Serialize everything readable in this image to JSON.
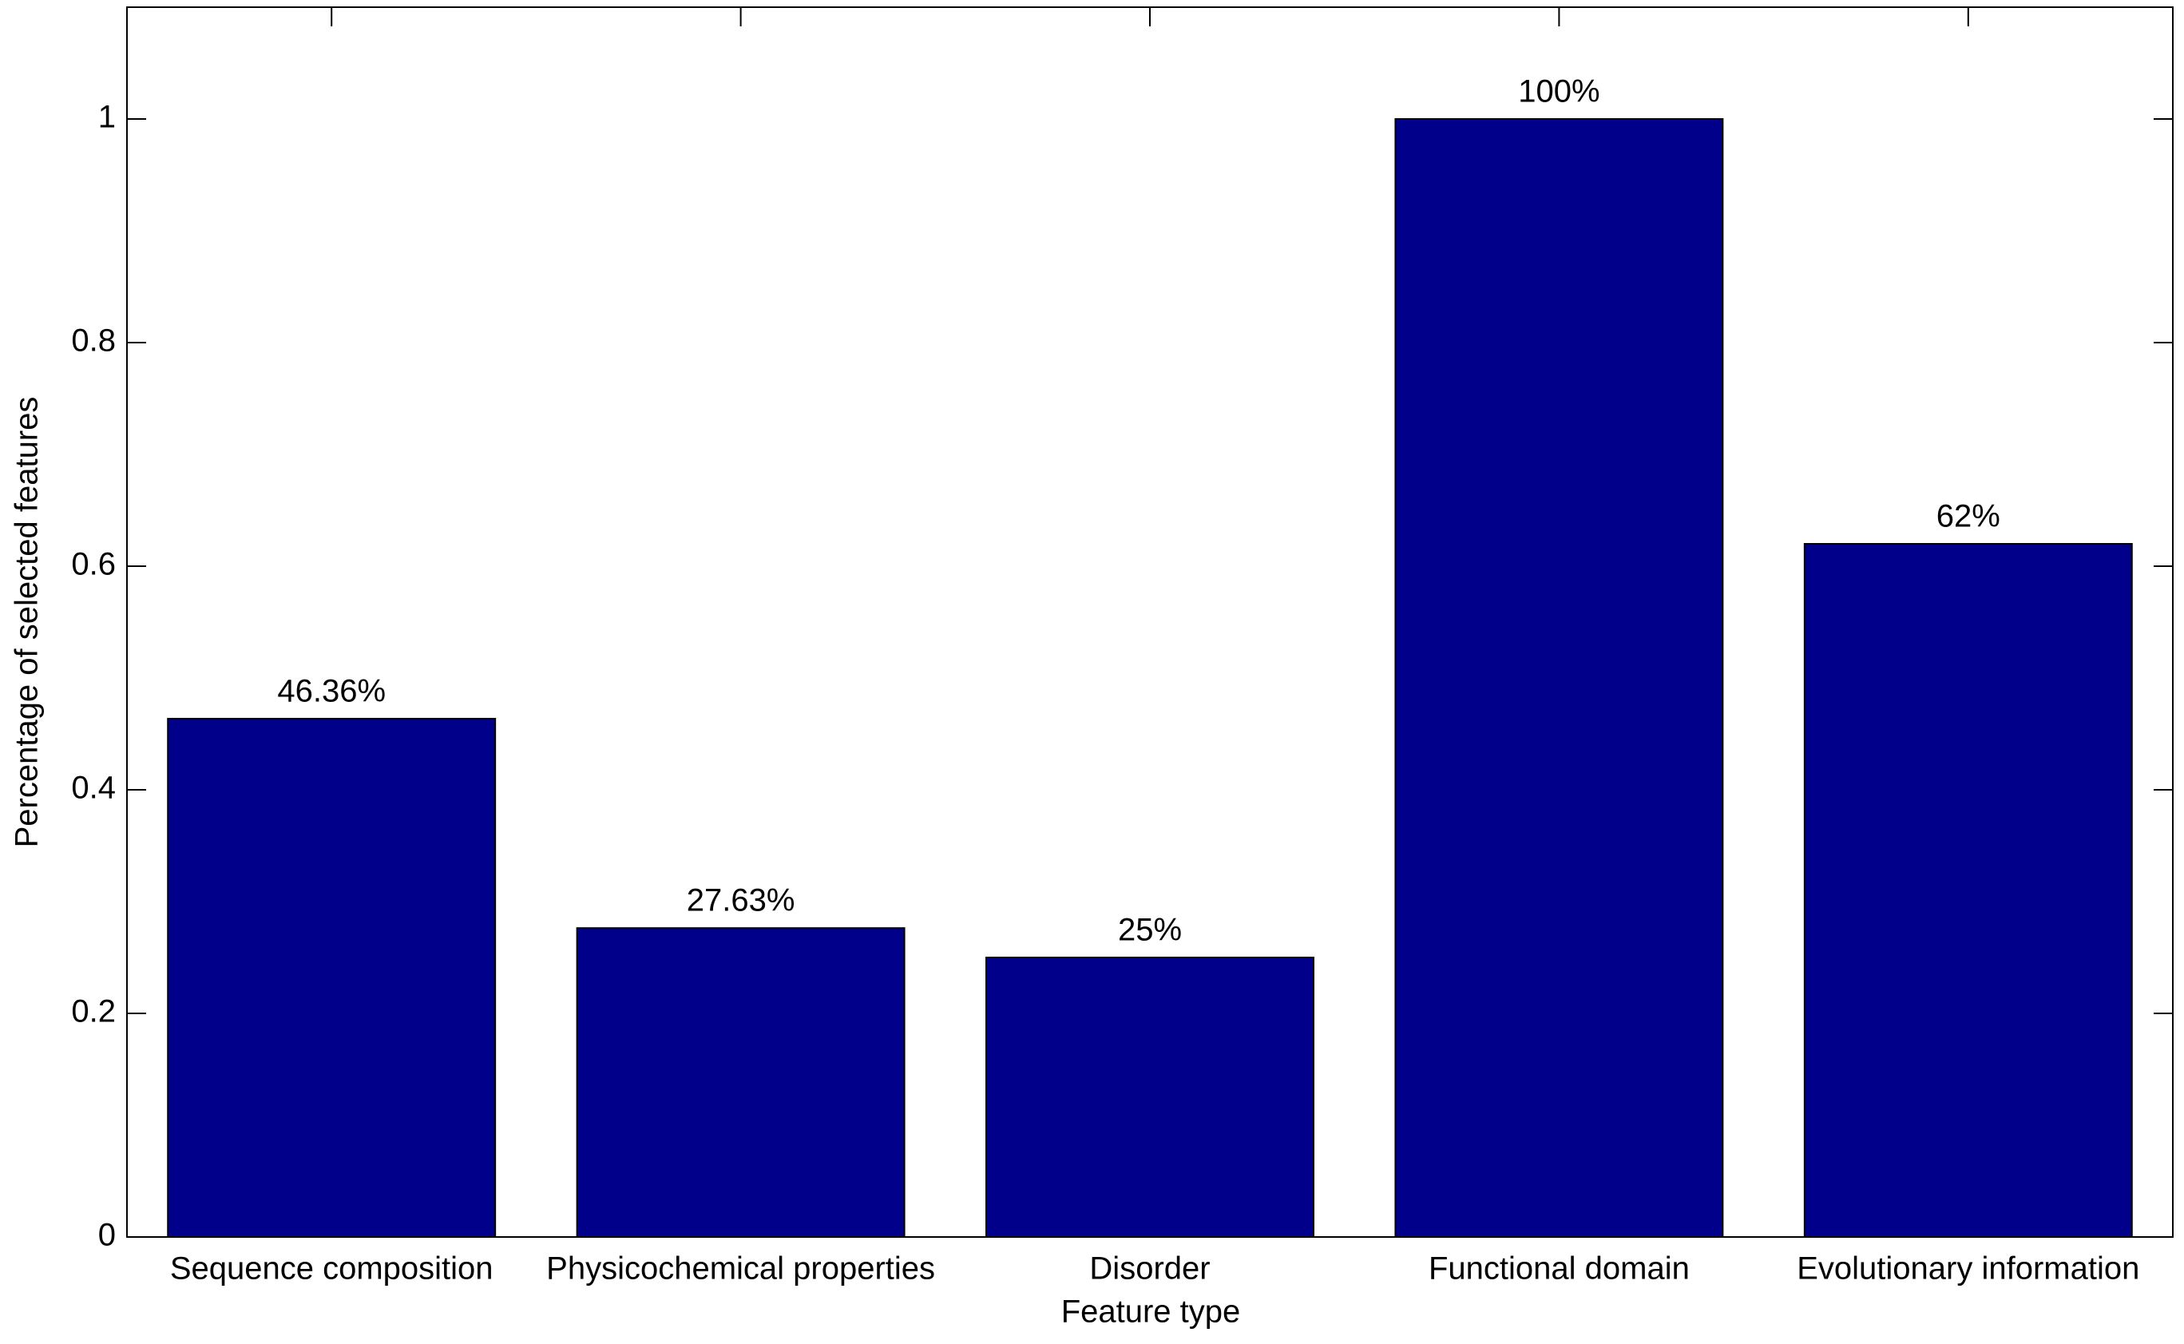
{
  "chart_data": {
    "type": "bar",
    "x_label": "Feature type",
    "y_label": "Percentage of selected features",
    "categories": [
      "Sequence composition",
      "Physicochemical properties",
      "Disorder",
      "Functional domain",
      "Evolutionary information"
    ],
    "values": [
      0.4636,
      0.2763,
      0.25,
      1,
      0.62
    ],
    "value_labels": [
      "46.36%",
      "27.63%",
      "25%",
      "100%",
      "62%"
    ],
    "color": "#00008b",
    "ylim": [
      0,
      1.1
    ],
    "yticks": [
      0,
      0.2,
      0.4,
      0.6,
      0.8,
      1
    ],
    "grid": false
  }
}
